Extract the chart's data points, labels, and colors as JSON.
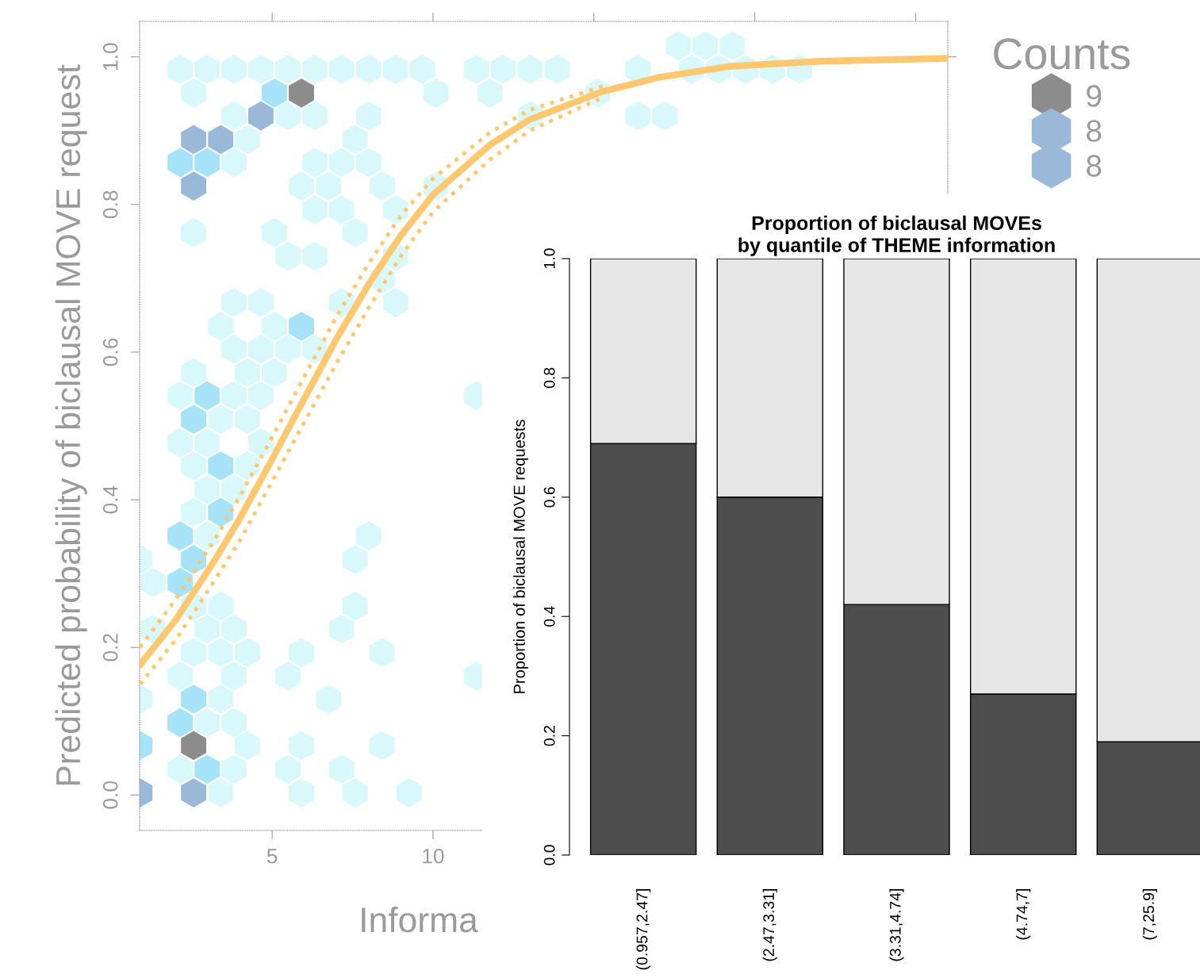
{
  "chart_data": [
    {
      "type": "scatter",
      "xlabel": "Informa",
      "ylabel": "Predicted probability of biclausal MOVE request",
      "legend_title": "Counts",
      "legend": "right",
      "xlim": [
        0.88,
        26
      ],
      "ylim": [
        -0.048,
        1.048
      ],
      "xticks": [
        5,
        10,
        {
          "value": 15,
          "label": null
        },
        {
          "value": 20,
          "label": null
        },
        {
          "value": 25,
          "label": null
        }
      ],
      "yticks": [
        {
          "value": 0,
          "label": "0.0"
        },
        {
          "value": 0.2,
          "label": "0.2"
        },
        {
          "value": 0.4,
          "label": "0.4"
        },
        {
          "value": 0.6,
          "label": "0.6"
        },
        {
          "value": 0.8,
          "label": "0.8"
        },
        {
          "value": 1,
          "label": "1.0"
        }
      ],
      "series": [
        {
          "name": "9",
          "color": "#8c8c8c",
          "x": [
            5.91,
            2.56
          ],
          "values": [
            0.951,
            0.067
          ]
        },
        {
          "name": "8",
          "color": "#9ab8d8",
          "x": [
            4.65,
            2.56,
            3.4
          ],
          "values": [
            0.92,
            0.888,
            0.888
          ]
        },
        {
          "name": "8",
          "color": "#9ab8d8",
          "x": [
            2.56,
            0.89,
            2.56
          ],
          "values": [
            0.825,
            0.003,
            0.003
          ]
        },
        {
          "color": "#a6e2f8",
          "x": [
            5.07,
            2.14,
            2.98,
            5.91,
            2.98,
            2.56,
            3.4,
            3.4,
            2.14,
            2.56,
            2.14,
            2.56,
            2.14,
            0.89,
            2.98
          ],
          "values": [
            0.951,
            0.857,
            0.857,
            0.635,
            0.541,
            0.509,
            0.446,
            0.383,
            0.351,
            0.319,
            0.288,
            0.13,
            0.098,
            0.067,
            0.035
          ]
        },
        {
          "color": "#d8f8fc",
          "x": [
            17.63,
            18.46,
            19.3,
            2.14,
            2.98,
            3.81,
            4.65,
            5.49,
            6.33,
            7.16,
            8.0,
            8.84,
            9.67,
            11.35,
            12.18,
            13.02,
            13.86,
            16.37,
            18.04,
            18.88,
            19.72,
            20.55,
            21.39,
            2.56,
            10.09,
            11.77,
            15.12,
            3.81,
            5.49,
            6.33,
            8.0,
            13.02,
            16.37,
            17.21,
            4.23,
            7.58,
            3.81,
            6.33,
            7.16,
            8.0,
            5.91,
            6.75,
            8.42,
            10.09,
            6.33,
            7.16,
            8.84,
            2.56,
            5.07,
            7.58,
            5.49,
            6.33,
            8.84,
            8.42,
            3.81,
            4.65,
            7.16,
            8.84,
            3.4,
            5.07,
            3.81,
            4.65,
            5.49,
            6.33,
            2.56,
            4.23,
            5.07,
            2.14,
            3.81,
            4.65,
            11.35,
            3.4,
            4.23,
            2.14,
            2.98,
            4.65,
            2.56,
            4.23,
            2.98,
            3.81,
            2.56,
            2.98,
            8.0,
            0.89,
            7.58,
            1.3,
            2.56,
            3.4,
            7.58,
            1.3,
            2.98,
            3.81,
            7.16,
            2.56,
            3.4,
            4.23,
            5.91,
            8.42,
            2.14,
            3.81,
            5.49,
            11.35,
            0.89,
            3.4,
            6.75,
            2.98,
            3.81,
            4.23,
            5.91,
            8.42,
            2.14,
            3.81,
            5.49,
            7.16,
            3.4,
            5.91,
            7.58,
            9.26
          ],
          "values": [
            1.015,
            1.015,
            1.015,
            0.983,
            0.983,
            0.983,
            0.983,
            0.983,
            0.983,
            0.983,
            0.983,
            0.983,
            0.983,
            0.983,
            0.983,
            0.983,
            0.983,
            0.983,
            0.983,
            0.983,
            0.983,
            0.983,
            0.983,
            0.951,
            0.951,
            0.951,
            0.951,
            0.92,
            0.92,
            0.92,
            0.92,
            0.92,
            0.92,
            0.92,
            0.888,
            0.888,
            0.857,
            0.857,
            0.857,
            0.857,
            0.825,
            0.825,
            0.825,
            0.825,
            0.793,
            0.793,
            0.793,
            0.762,
            0.762,
            0.762,
            0.73,
            0.73,
            0.73,
            0.699,
            0.667,
            0.667,
            0.667,
            0.667,
            0.635,
            0.635,
            0.604,
            0.604,
            0.604,
            0.604,
            0.572,
            0.572,
            0.572,
            0.541,
            0.541,
            0.541,
            0.541,
            0.509,
            0.509,
            0.477,
            0.477,
            0.477,
            0.446,
            0.446,
            0.414,
            0.414,
            0.383,
            0.351,
            0.351,
            0.319,
            0.319,
            0.288,
            0.256,
            0.256,
            0.256,
            0.225,
            0.225,
            0.225,
            0.225,
            0.193,
            0.193,
            0.193,
            0.193,
            0.193,
            0.161,
            0.161,
            0.161,
            0.161,
            0.13,
            0.13,
            0.13,
            0.098,
            0.098,
            0.067,
            0.067,
            0.067,
            0.035,
            0.035,
            0.035,
            0.035,
            0.003,
            0.003,
            0.003,
            0.003
          ]
        },
        {
          "type": "line",
          "color": "#ffc870",
          "x": [
            0.89,
            2,
            3.2,
            4,
            5,
            6,
            7,
            8,
            9,
            10,
            11.75,
            13,
            15.27,
            17,
            19.2,
            22,
            26
          ],
          "values": [
            0.176,
            0.237,
            0.317,
            0.375,
            0.455,
            0.537,
            0.618,
            0.692,
            0.758,
            0.813,
            0.88,
            0.915,
            0.953,
            0.972,
            0.987,
            0.994,
            0.998
          ]
        },
        {
          "type": "line",
          "line_style": "dotted",
          "color": "#ffc870",
          "x": [
            0.89,
            2,
            3.2,
            4,
            5,
            6,
            7,
            8,
            9,
            10,
            11.75,
            13,
            15.27
          ],
          "values": [
            0.15,
            0.21,
            0.29,
            0.345,
            0.425,
            0.505,
            0.585,
            0.66,
            0.73,
            0.79,
            0.86,
            0.9,
            0.945
          ]
        },
        {
          "type": "line",
          "line_style": "dotted",
          "color": "#ffc870",
          "x": [
            0.89,
            2,
            3.2,
            4,
            5,
            6,
            7,
            8,
            9,
            10,
            11.75,
            13,
            15.27
          ],
          "values": [
            0.2,
            0.265,
            0.345,
            0.405,
            0.485,
            0.567,
            0.648,
            0.72,
            0.785,
            0.835,
            0.897,
            0.928,
            0.96
          ]
        }
      ]
    },
    {
      "type": "bar",
      "stacked": true,
      "title": "Proportion of biclausal MOVEs\nby quantile of THEME information",
      "ylabel": "Proportion of biclausal MOVE requests",
      "categories": [
        "(0.957,2.47]",
        "(2.47,3.31]",
        "(3.31,4.74]",
        "(4.74,7]",
        "(7,25.9]"
      ],
      "ylim": [
        0,
        1
      ],
      "yticks": [
        {
          "value": 0,
          "label": "0.0"
        },
        {
          "value": 0.2,
          "label": "0.2"
        },
        {
          "value": 0.4,
          "label": "0.4"
        },
        {
          "value": 0.6,
          "label": "0.6"
        },
        {
          "value": 0.8,
          "label": "0.8"
        },
        {
          "value": 1,
          "label": "1.0"
        }
      ],
      "series": [
        {
          "color": "#4d4d4d",
          "values": [
            0.69,
            0.6,
            0.42,
            0.27,
            0.19
          ]
        },
        {
          "color": "#e6e6e6",
          "values": [
            0.31,
            0.4,
            0.58,
            0.73,
            0.81
          ]
        }
      ]
    }
  ]
}
